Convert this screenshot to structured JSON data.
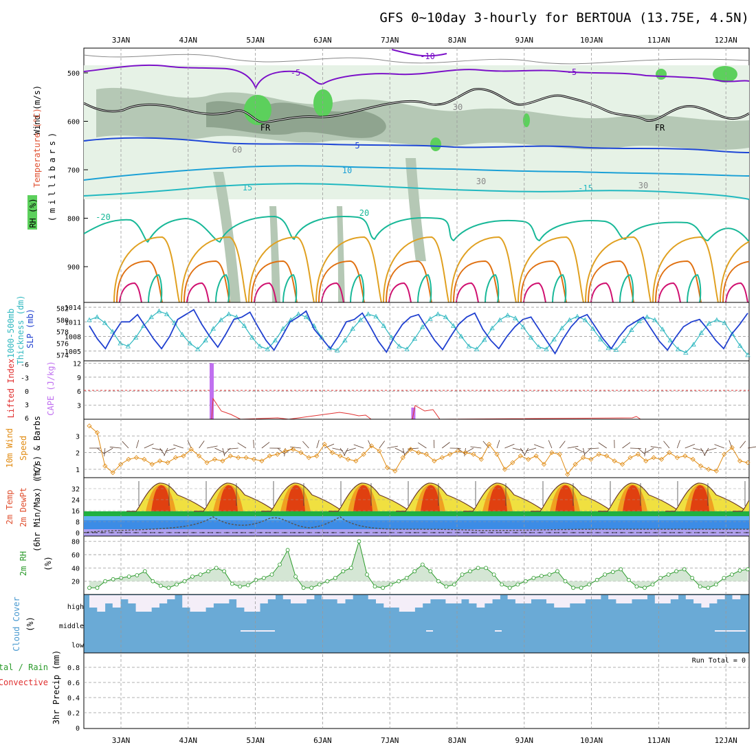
{
  "title": "GFS 0~10day 3-hourly for BERTOUA (13.75E, 4.5N)",
  "days": [
    "3JAN",
    "4JAN",
    "5JAN",
    "6JAN",
    "7JAN",
    "8JAN",
    "9JAN",
    "10JAN",
    "11JAN",
    "12JAN"
  ],
  "colors": {
    "temperature": "#7b10c8",
    "freezing": "#000000",
    "rh_fill": "#5a6f5a",
    "thickness": "#30b8c0",
    "slp": "#2040d0",
    "cape": "#c070f0",
    "li": "#e03030",
    "wind10": "#e08a10",
    "rh2m": "#2a9a2a",
    "cloud": "#6aaad6"
  },
  "panels": {
    "upper": {
      "label_wind": "Wind (m/s)",
      "label_temp_a": "Temperature",
      "label_temp_b": "(°C)",
      "label_rh": "RH (%)",
      "label_mb": "(millibars)",
      "y_ticks": [
        "500",
        "600",
        "700",
        "800",
        "900"
      ],
      "contour_labels": [
        "-10",
        "-5",
        "-5",
        "5",
        "10",
        "15",
        "-15",
        "20",
        "-20",
        "FR",
        "FR",
        "30",
        "30",
        "60",
        "30"
      ]
    },
    "slp": {
      "label_a": "1000-500mb",
      "label_b": "Thickness (dm)",
      "label_c": "SLP (mb)",
      "left_ticks": [
        "582",
        "580",
        "578",
        "576",
        "574"
      ],
      "right_ticks": [
        "1014",
        "1011",
        "1008",
        "1005"
      ]
    },
    "cape": {
      "label_li": "Lifted Index",
      "label_cape": "CAPE (J/kg)",
      "left_ticks": [
        "-6",
        "-3",
        "0",
        "3",
        "6"
      ],
      "right_ticks": [
        "12",
        "9",
        "6",
        "3"
      ]
    },
    "wind": {
      "label_a": "10m Wind",
      "label_b": "Speed",
      "label_c": "(m/s) & Barbs",
      "ticks": [
        "3",
        "2",
        "1"
      ]
    },
    "temp": {
      "label_a": "2m Temp",
      "label_b": "2m DewPt",
      "label_c": "(6hr Min/Max) (°C)",
      "ticks": [
        "32",
        "24",
        "16",
        "8",
        "0"
      ]
    },
    "rh": {
      "label_a": "2m RH",
      "label_b": "(%)",
      "ticks": [
        "80",
        "60",
        "40",
        "20"
      ]
    },
    "cloud": {
      "label_a": "Cloud Cover",
      "label_b": "(%)",
      "levels": [
        "high",
        "middle",
        "low"
      ]
    },
    "precip": {
      "label_a": "Total / Rain",
      "label_b": "Convective",
      "label_c": "3hr Precip (mm)",
      "ticks": [
        "0.8",
        "0.6",
        "0.4",
        "0.2",
        "0"
      ],
      "run_total": "Run Total = 0"
    }
  },
  "chart_data": [
    {
      "type": "line",
      "name": "slp",
      "xlabel": "",
      "ylabel": "SLP (mb)",
      "ylim": [
        1003,
        1015
      ],
      "values": [
        1010.2,
        1007.5,
        1005.5,
        1008.5,
        1011,
        1011,
        1012.5,
        1010,
        1007.5,
        1005.5,
        1008,
        1011.5,
        1012.5,
        1013.5,
        1010.5,
        1008,
        1005.8,
        1008.5,
        1011.5,
        1012,
        1013,
        1010,
        1007.2,
        1005.2,
        1008,
        1011,
        1012,
        1013.2,
        1009.5,
        1007.5,
        1005.5,
        1008,
        1011,
        1011.5,
        1012.8,
        1010,
        1007,
        1004.8,
        1008,
        1010.5,
        1012,
        1012.5,
        1009.8,
        1007.2,
        1005.3,
        1008,
        1010.5,
        1012,
        1012.8,
        1009.5,
        1007.2,
        1005.5,
        1008,
        1010,
        1011.5,
        1012,
        1009.5,
        1007,
        1004.5,
        1007.5,
        1010,
        1011.8,
        1012.5,
        1010,
        1007.5,
        1005.5,
        1008,
        1010,
        1011,
        1012,
        1009.5,
        1007,
        1005.2,
        1007.8,
        1010,
        1011,
        1011.5,
        1009.5,
        1007.2,
        1005.5,
        1008.5,
        1010.5,
        1012.8
      ]
    },
    {
      "type": "line",
      "name": "thickness",
      "ylabel": "1000-500mb Thickness (dm)",
      "ylim": [
        573,
        583
      ],
      "values": [
        580,
        580.5,
        579.5,
        578,
        576,
        575.5,
        577,
        579,
        580.5,
        581.5,
        581,
        579.5,
        577.5,
        576,
        575,
        576.5,
        578.5,
        580,
        581,
        580.5,
        579,
        577,
        575.5,
        575,
        576.5,
        578.5,
        580,
        581,
        580.5,
        579,
        577,
        575.2,
        574.8,
        576.5,
        578.5,
        580,
        581,
        580.6,
        579,
        577,
        575.5,
        575,
        576.8,
        578.8,
        580.2,
        581,
        580.5,
        579,
        577.2,
        575.5,
        575,
        576.6,
        578.6,
        580,
        580.8,
        580.3,
        578.8,
        577,
        575.4,
        575,
        576.7,
        578.6,
        580,
        580.6,
        580,
        578.5,
        576.7,
        575.2,
        574.9,
        576.4,
        578.3,
        579.8,
        580.5,
        580,
        578.4,
        576.5,
        575,
        574.4,
        575.8,
        577.8,
        579.4,
        580,
        579.5,
        577.6,
        575.6,
        574
      ]
    },
    {
      "type": "bar",
      "name": "cape",
      "ylabel": "CAPE (J/kg)",
      "ylim": [
        0,
        12.5
      ],
      "x_days": [
        4.35,
        7.35
      ],
      "values": [
        12,
        2.5
      ]
    },
    {
      "type": "line",
      "name": "wind10",
      "ylabel": "(m/s)",
      "ylim": [
        0.5,
        4
      ],
      "values": [
        3.6,
        3.2,
        1.2,
        0.8,
        1.3,
        1.6,
        1.7,
        1.6,
        1.3,
        1.5,
        1.4,
        1.7,
        1.8,
        2.2,
        1.8,
        1.4,
        1.6,
        1.5,
        1.8,
        1.7,
        1.7,
        1.6,
        1.5,
        1.8,
        1.9,
        2.1,
        2.2,
        2.0,
        1.7,
        1.8,
        2.5,
        2.0,
        1.8,
        1.6,
        1.5,
        1.9,
        2.4,
        2.1,
        1.1,
        0.9,
        1.7,
        2.2,
        2.0,
        1.9,
        1.5,
        1.7,
        1.9,
        2.1,
        2.0,
        1.9,
        1.6,
        2.5,
        1.9,
        1.0,
        1.4,
        1.8,
        1.6,
        1.8,
        1.3,
        2.0,
        1.9,
        0.7,
        1.3,
        1.7,
        1.6,
        1.9,
        1.8,
        1.5,
        1.3,
        1.7,
        1.9,
        1.5,
        1.7,
        1.6,
        2.0,
        1.7,
        1.8,
        1.6,
        1.2,
        1.0,
        0.9,
        1.9,
        2.3,
        1.5,
        1.4
      ]
    },
    {
      "type": "area",
      "name": "rh2m",
      "ylabel": "(%)",
      "ylim": [
        0,
        88
      ],
      "values": [
        10,
        10,
        20,
        23,
        25,
        27,
        29,
        35,
        20,
        13,
        10,
        15,
        20,
        27,
        30,
        35,
        40,
        35,
        16,
        12,
        14,
        22,
        25,
        30,
        45,
        67,
        27,
        10,
        10,
        15,
        20,
        25,
        35,
        40,
        80,
        30,
        12,
        10,
        15,
        20,
        25,
        35,
        45,
        35,
        20,
        12,
        15,
        30,
        35,
        40,
        40,
        30,
        15,
        10,
        15,
        20,
        25,
        28,
        30,
        35,
        20,
        10,
        10,
        15,
        22,
        30,
        34,
        38,
        22,
        12,
        10,
        15,
        25,
        30,
        35,
        38,
        25,
        12,
        10,
        15,
        25,
        30,
        36,
        38
      ]
    }
  ]
}
